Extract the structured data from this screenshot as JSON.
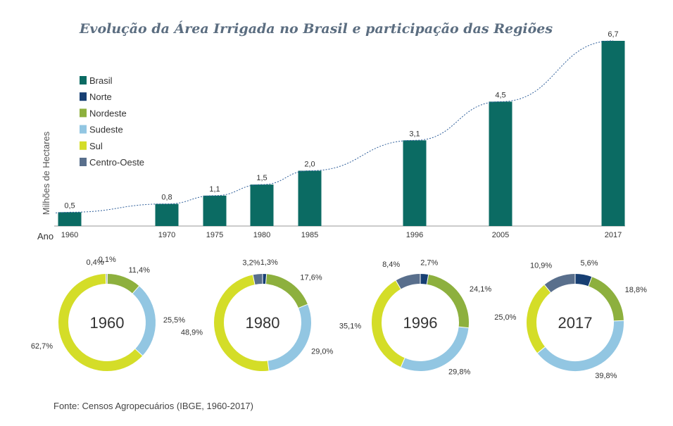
{
  "title": "Evolução da Área Irrigada no Brasil e participação das Regiões",
  "source": "Fonte: Censos Agropecuários (IBGE, 1960-2017)",
  "colors": {
    "Brasil": "#0b6b63",
    "Norte": "#173f73",
    "Nordeste": "#8db03e",
    "Sudeste": "#92c6e2",
    "Sul": "#d4dd28",
    "Centro-Oeste": "#596f8c"
  },
  "chart_data": [
    {
      "type": "bar",
      "title": "Evolução da Área Irrigada no Brasil e participação das Regiões",
      "xlabel": "Ano",
      "ylabel": "Milhões de Hectares",
      "categories": [
        "1960",
        "1970",
        "1975",
        "1980",
        "1985",
        "1996",
        "2005",
        "2017"
      ],
      "values": [
        0.5,
        0.8,
        1.1,
        1.5,
        2.0,
        3.1,
        4.5,
        6.7
      ],
      "value_labels": [
        "0,5",
        "0,8",
        "1,1",
        "1,5",
        "2,0",
        "3,1",
        "4,5",
        "6,7"
      ],
      "ylim": [
        0,
        6.7
      ],
      "trendline": "dotted",
      "legend": [
        "Brasil",
        "Norte",
        "Nordeste",
        "Sudeste",
        "Sul",
        "Centro-Oeste"
      ]
    },
    {
      "type": "pie",
      "donut": true,
      "label": "1960",
      "order": [
        "Norte",
        "Nordeste",
        "Sudeste",
        "Sul",
        "Centro-Oeste"
      ],
      "values": [
        0.1,
        11.4,
        25.5,
        62.7,
        0.4
      ],
      "value_labels": [
        "0,1%",
        "11,4%",
        "25,5%",
        "62,7%",
        "0,4%"
      ]
    },
    {
      "type": "pie",
      "donut": true,
      "label": "1980",
      "order": [
        "Norte",
        "Nordeste",
        "Sudeste",
        "Sul",
        "Centro-Oeste"
      ],
      "values": [
        1.3,
        17.6,
        29.0,
        48.9,
        3.2
      ],
      "value_labels": [
        "1,3%",
        "17,6%",
        "29,0%",
        "48,9%",
        "3,2%"
      ]
    },
    {
      "type": "pie",
      "donut": true,
      "label": "1996",
      "order": [
        "Norte",
        "Nordeste",
        "Sudeste",
        "Sul",
        "Centro-Oeste"
      ],
      "values": [
        2.7,
        24.1,
        29.8,
        35.1,
        8.4
      ],
      "value_labels": [
        "2,7%",
        "24,1%",
        "29,8%",
        "35,1%",
        "8,4%"
      ]
    },
    {
      "type": "pie",
      "donut": true,
      "label": "2017",
      "order": [
        "Norte",
        "Nordeste",
        "Sudeste",
        "Sul",
        "Centro-Oeste"
      ],
      "values": [
        5.6,
        18.8,
        39.8,
        25.0,
        10.9
      ],
      "value_labels": [
        "5,6%",
        "18,8%",
        "39,8%",
        "25,0%",
        "10,9%"
      ]
    }
  ]
}
